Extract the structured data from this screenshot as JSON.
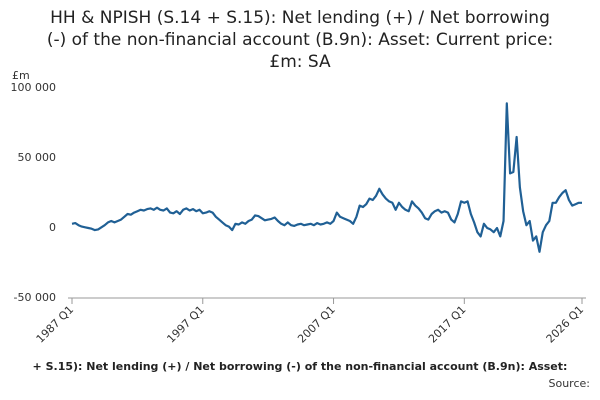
{
  "chart_data": {
    "type": "line",
    "title": [
      "HH & NPISH (S.14 + S.15): Net lending (+) / Net borrowing",
      "(-) of the non-financial account (B.9n): Asset: Current price:",
      "£m: SA"
    ],
    "y_unit": "£m",
    "footer": "+ S.15): Net lending (+) / Net borrowing (-) of the non-financial account (B.9n): Asset:",
    "source": "Source:",
    "categories": [
      "1987 Q1",
      null,
      null,
      null,
      null,
      null,
      null,
      null,
      null,
      null,
      null,
      null,
      null,
      null,
      null,
      null,
      null,
      null,
      null,
      null,
      null,
      null,
      null,
      null,
      null,
      null,
      null,
      null,
      null,
      null,
      null,
      null,
      null,
      null,
      null,
      null,
      null,
      null,
      null,
      null,
      "1997 Q1",
      null,
      null,
      null,
      null,
      null,
      null,
      null,
      null,
      null,
      null,
      null,
      null,
      null,
      null,
      null,
      null,
      null,
      null,
      null,
      null,
      null,
      null,
      null,
      null,
      null,
      null,
      null,
      null,
      null,
      null,
      null,
      null,
      null,
      null,
      null,
      null,
      null,
      null,
      null,
      "2007 Q1",
      null,
      null,
      null,
      null,
      null,
      null,
      null,
      null,
      null,
      null,
      null,
      null,
      null,
      null,
      null,
      null,
      null,
      null,
      null,
      null,
      null,
      null,
      null,
      null,
      null,
      null,
      null,
      null,
      null,
      null,
      null,
      null,
      null,
      null,
      null,
      null,
      null,
      null,
      null,
      "2017 Q1",
      null,
      null,
      null,
      null,
      null,
      null,
      null,
      null,
      null,
      null,
      null,
      null,
      null,
      null,
      null,
      null,
      null,
      null,
      null,
      null,
      null,
      null,
      null,
      null,
      null,
      null,
      null,
      null,
      null,
      null,
      null,
      null,
      null,
      null,
      null,
      "2026 Q1"
    ],
    "series": [
      {
        "name": "HH & NPISH net lending",
        "color": "#206095",
        "values": [
          3000,
          3500,
          2000,
          1000,
          500,
          0,
          -500,
          -1500,
          -1000,
          500,
          2000,
          4000,
          5000,
          4000,
          5000,
          6000,
          8000,
          10000,
          9500,
          11000,
          12000,
          13000,
          12500,
          13500,
          14000,
          13000,
          14500,
          13000,
          12500,
          14000,
          11000,
          10500,
          12000,
          10000,
          13000,
          14000,
          12500,
          13500,
          12000,
          13000,
          10500,
          11000,
          12000,
          11000,
          8000,
          6000,
          4000,
          2000,
          1000,
          -1500,
          3000,
          2500,
          4000,
          3000,
          5000,
          6000,
          9000,
          8500,
          7000,
          5500,
          6000,
          6500,
          7500,
          5000,
          3000,
          2000,
          4000,
          2000,
          1500,
          2500,
          3000,
          2000,
          2500,
          3000,
          2000,
          3500,
          2500,
          3000,
          4000,
          3000,
          5000,
          11000,
          8000,
          7000,
          6000,
          5000,
          3000,
          8000,
          16000,
          15000,
          17000,
          21000,
          20000,
          23000,
          28000,
          24000,
          21000,
          19000,
          18000,
          13000,
          18000,
          15000,
          13000,
          12000,
          19000,
          16000,
          14000,
          11000,
          7000,
          6000,
          10000,
          12000,
          13000,
          11000,
          12000,
          11000,
          6000,
          4000,
          10000,
          19000,
          18000,
          19000,
          10000,
          4000,
          -3000,
          -6000,
          3000,
          0,
          -1000,
          -3000,
          0,
          -6000,
          5000,
          89000,
          39000,
          40000,
          65000,
          29000,
          12000,
          2000,
          5000,
          -9000,
          -6000,
          -17000,
          -3000,
          2000,
          5000,
          18000,
          18000,
          22000,
          25000,
          27000,
          20000,
          16000,
          17000,
          18000,
          18000
        ]
      }
    ],
    "ylim": [
      -50000,
      100000
    ],
    "yticks": [
      {
        "value": -50000,
        "label": "-50 000"
      },
      0,
      {
        "value": 50000,
        "label": "50 000"
      },
      {
        "value": 100000,
        "label": "100 000"
      }
    ],
    "grid": false
  }
}
